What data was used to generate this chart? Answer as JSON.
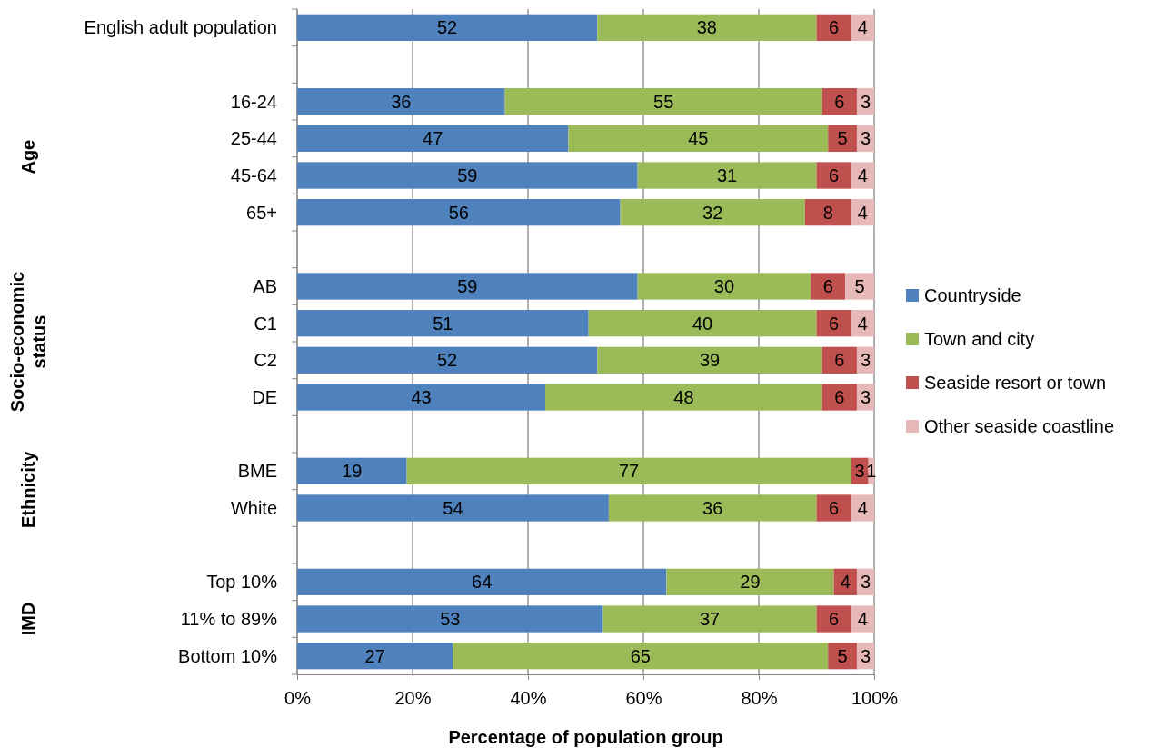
{
  "chart_data": {
    "type": "bar",
    "orientation": "horizontal",
    "stacked": true,
    "categories": [
      "English adult population",
      null,
      "16-24",
      "25-44",
      "45-64",
      "65+",
      null,
      "AB",
      "C1",
      "C2",
      "DE",
      null,
      "BME",
      "White",
      null,
      "Top 10%",
      "11% to 89%",
      "Bottom 10%"
    ],
    "series": [
      {
        "name": "Countryside",
        "color": "#4f81bd",
        "values": [
          52,
          null,
          36,
          47,
          59,
          56,
          null,
          59,
          50.5,
          52,
          43,
          null,
          19,
          54,
          null,
          64,
          53,
          27
        ],
        "value_labels": [
          "52",
          null,
          "36",
          "47",
          "59",
          "56",
          null,
          "59",
          "51",
          "52",
          "43",
          null,
          "19",
          "54",
          null,
          "64",
          "53",
          "27"
        ]
      },
      {
        "name": "Town and city",
        "color": "#9bbb59",
        "values": [
          38,
          null,
          55,
          45,
          31,
          32,
          null,
          30,
          39.5,
          39,
          48,
          null,
          77,
          36,
          null,
          29,
          37,
          65
        ],
        "value_labels": [
          "38",
          null,
          "55",
          "45",
          "31",
          "32",
          null,
          "30",
          "40",
          "39",
          "48",
          null,
          "77",
          "36",
          null,
          "29",
          "37",
          "65"
        ]
      },
      {
        "name": "Seaside resort or town",
        "color": "#c0504d",
        "values": [
          6,
          null,
          6,
          5,
          6,
          8,
          null,
          6,
          6,
          6,
          6,
          null,
          3,
          6,
          null,
          4,
          6,
          5
        ],
        "value_labels": [
          "6",
          null,
          "6",
          "5",
          "6",
          "8",
          null,
          "6",
          "6",
          "6",
          "6",
          null,
          "3",
          "6",
          null,
          "4",
          "6",
          "5"
        ]
      },
      {
        "name": "Other seaside coastline",
        "color": "#e6b9b8",
        "values": [
          4,
          null,
          3,
          3,
          4,
          4,
          null,
          5,
          4,
          3,
          3,
          null,
          1,
          4,
          null,
          3,
          4,
          3
        ],
        "value_labels": [
          "4",
          null,
          "3",
          "3",
          "4",
          "4",
          null,
          "5",
          "4",
          "3",
          "3",
          null,
          "1",
          "4",
          null,
          "3",
          "4",
          "3"
        ]
      }
    ],
    "xlim": [
      0,
      100
    ],
    "xticks": [
      {
        "value": 0,
        "label": "0%"
      },
      {
        "value": 20,
        "label": "20%"
      },
      {
        "value": 40,
        "label": "40%"
      },
      {
        "value": 60,
        "label": "60%"
      },
      {
        "value": 80,
        "label": "80%"
      },
      {
        "value": 100,
        "label": "100%"
      }
    ],
    "xlabel": "Percentage of population group",
    "annotations": [
      "Age",
      "Socio-economic status",
      "Ethnicity",
      "IMD"
    ],
    "grid": "x",
    "legend": "right"
  }
}
